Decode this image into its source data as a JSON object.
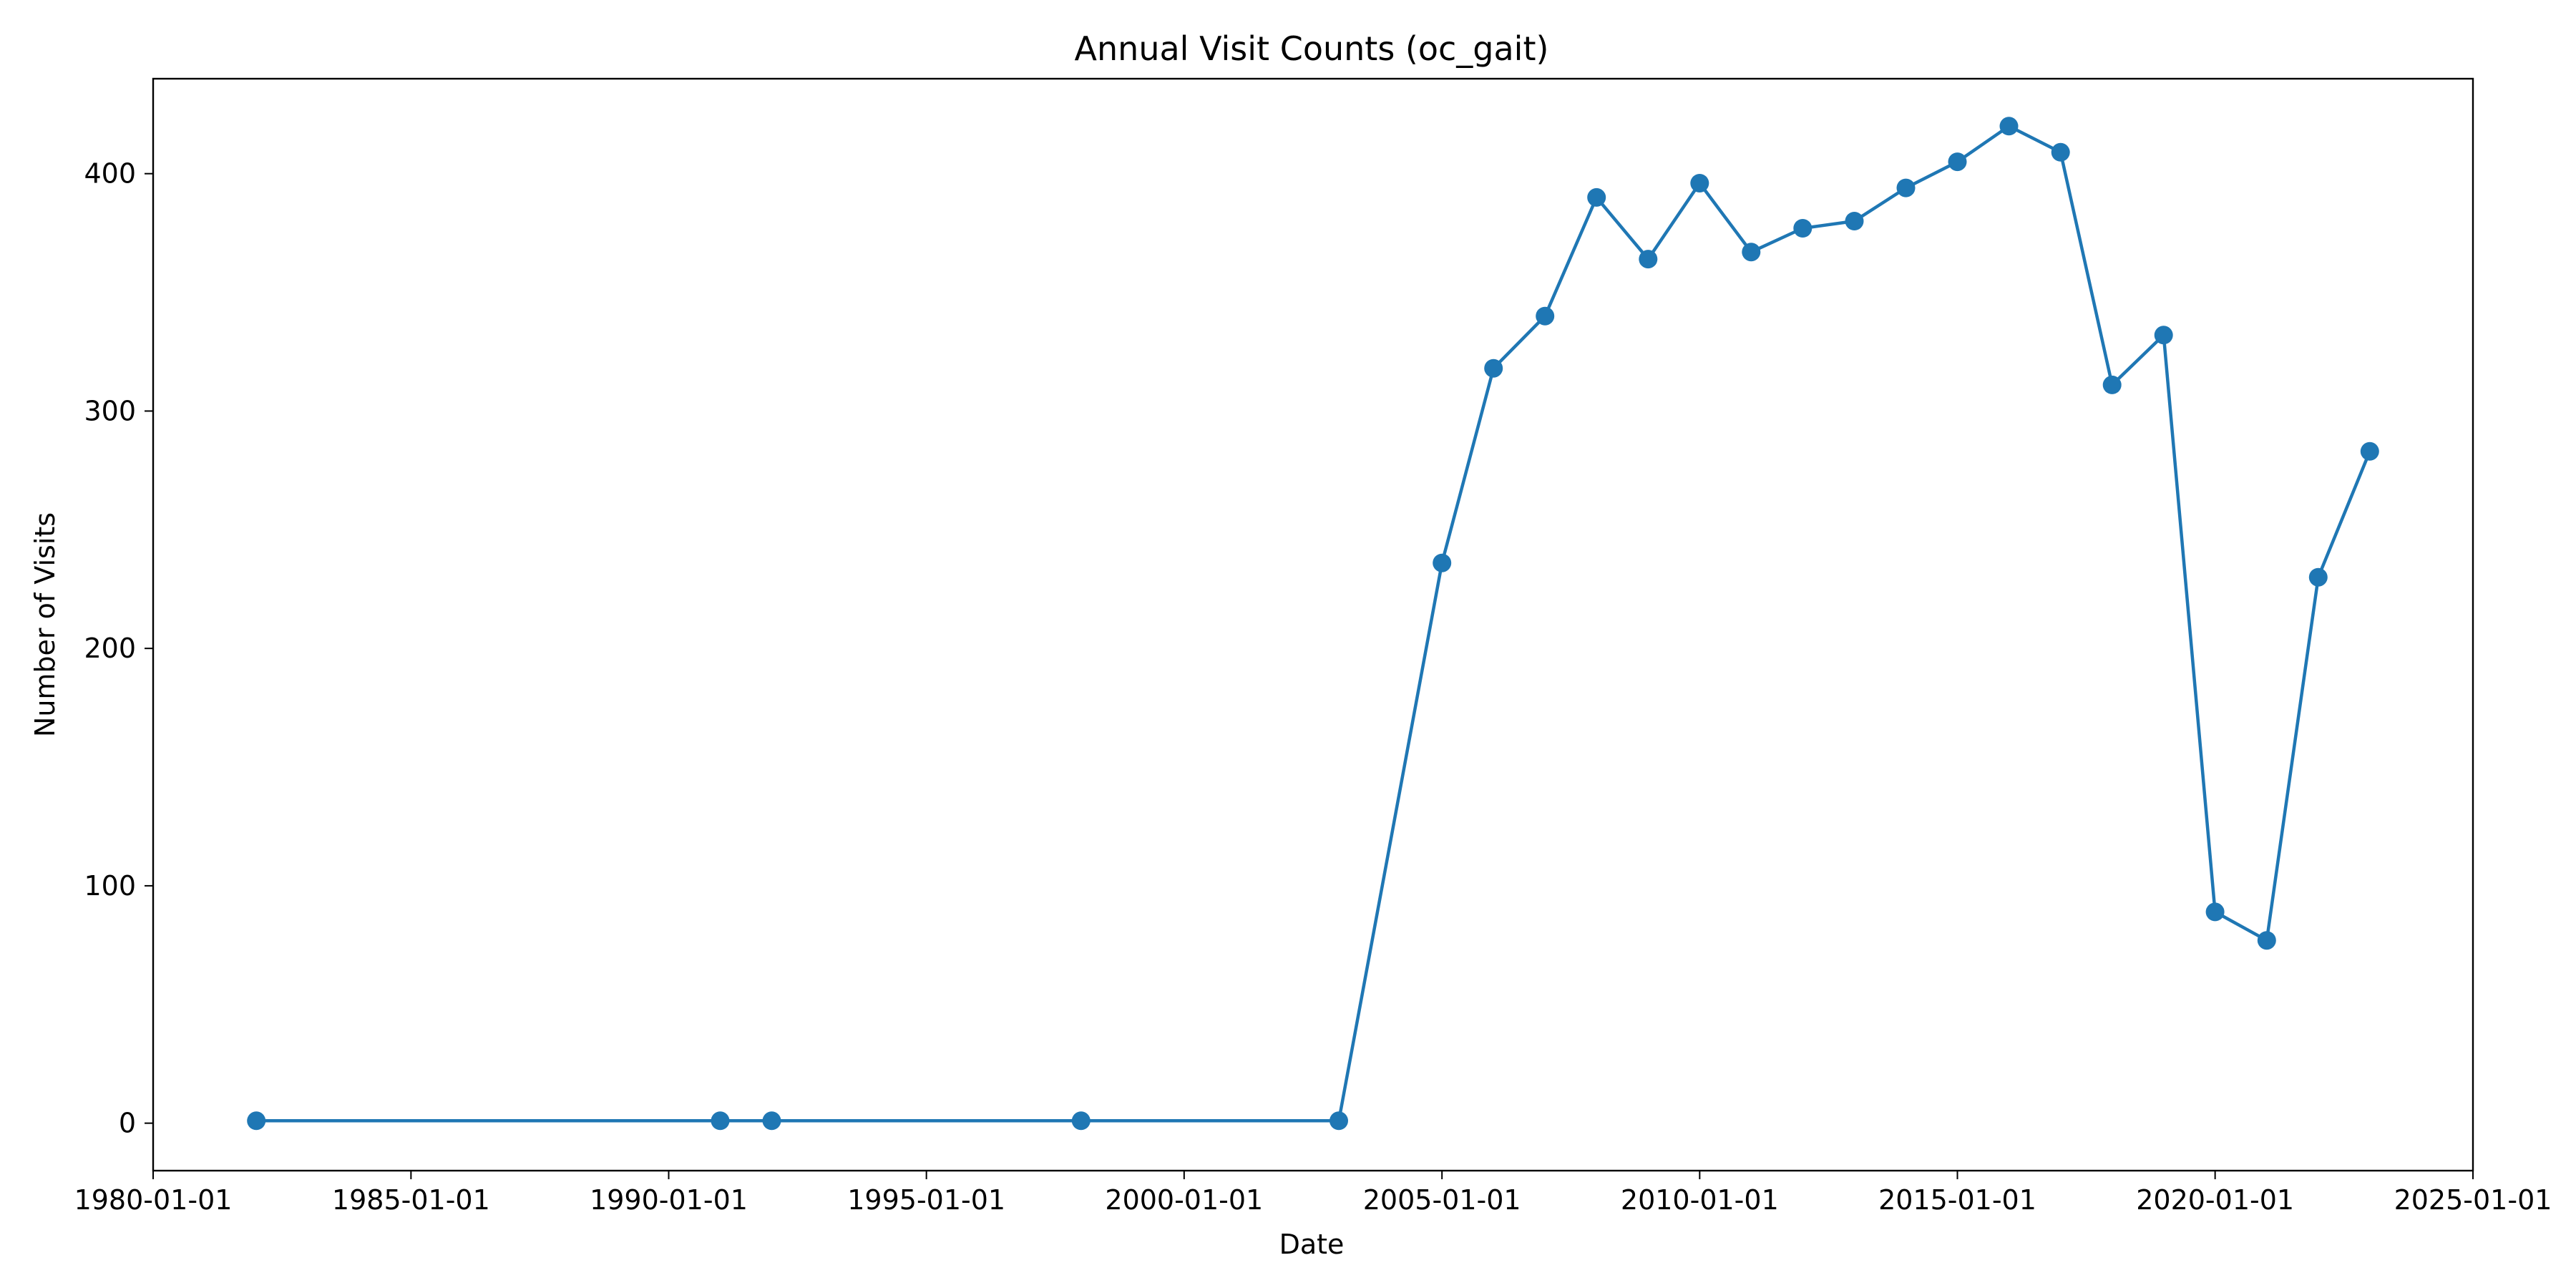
{
  "chart_data": {
    "type": "line",
    "title": "Annual Visit Counts (oc_gait)",
    "xlabel": "Date",
    "ylabel": "Number of Visits",
    "x_ticks": [
      "1980-01-01",
      "1985-01-01",
      "1990-01-01",
      "1995-01-01",
      "2000-01-01",
      "2005-01-01",
      "2010-01-01",
      "2015-01-01",
      "2020-01-01",
      "2025-01-01"
    ],
    "y_ticks": [
      0,
      100,
      200,
      300,
      400
    ],
    "xlim": [
      "1980-01-01",
      "2025-01-01"
    ],
    "ylim": [
      -20,
      440
    ],
    "grid": false,
    "color": "#1f77b4",
    "series": [
      {
        "x": [
          "1982-01-01",
          "1991-01-01",
          "1992-01-01",
          "1998-01-01",
          "2003-01-01",
          "2005-01-01",
          "2006-01-01",
          "2007-01-01",
          "2008-01-01",
          "2009-01-01",
          "2010-01-01",
          "2011-01-01",
          "2012-01-01",
          "2013-01-01",
          "2014-01-01",
          "2015-01-01",
          "2016-01-01",
          "2017-01-01",
          "2018-01-01",
          "2019-01-01",
          "2020-01-01",
          "2021-01-01",
          "2022-01-01",
          "2023-01-01"
        ],
        "values": [
          1,
          1,
          1,
          1,
          1,
          236,
          318,
          340,
          390,
          364,
          396,
          367,
          377,
          380,
          394,
          405,
          420,
          409,
          311,
          332,
          89,
          77,
          230,
          283
        ]
      }
    ]
  }
}
